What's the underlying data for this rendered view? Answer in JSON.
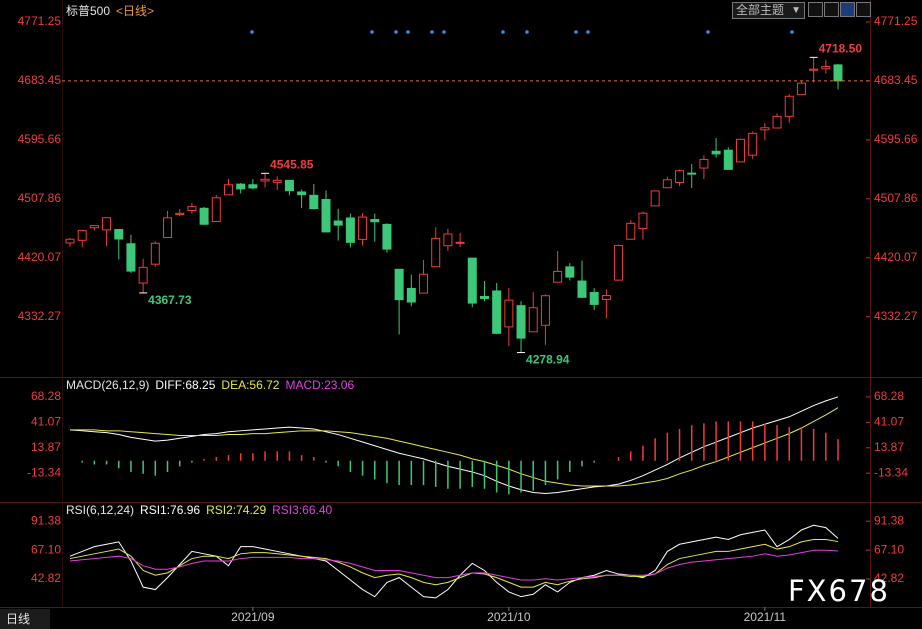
{
  "chart_data": [
    {
      "type": "candlestick",
      "title": "标普500",
      "subtitle": "<日线>",
      "categories": [
        null,
        null,
        null,
        null,
        null,
        null,
        null,
        null,
        null,
        null,
        null,
        null,
        null,
        null,
        null,
        "2021/09",
        null,
        null,
        null,
        null,
        null,
        null,
        null,
        null,
        null,
        null,
        null,
        null,
        null,
        null,
        null,
        null,
        null,
        null,
        null,
        null,
        "2021/10",
        null,
        null,
        null,
        null,
        null,
        null,
        null,
        null,
        null,
        null,
        null,
        null,
        null,
        null,
        null,
        null,
        null,
        null,
        null,
        null,
        "2021/11",
        null,
        null,
        null,
        null,
        null,
        null
      ],
      "open": [
        4442.18,
        4446.08,
        4464.84,
        4461.65,
        4462.12,
        4440.94,
        4382.44,
        4410.56,
        4450.29,
        4484.4,
        4490.45,
        4493.75,
        4474.1,
        4513.76,
        4529.75,
        4528.8,
        4534.48,
        4532.42,
        4535.38,
        4518.09,
        4513.02,
        4506.92,
        4474.81,
        4479.33,
        4447.49,
        4477.09,
        4469.74,
        4402.95,
        4374.45,
        4367.43,
        4406.75,
        4438.04,
        4442.12,
        4419.54,
        4362.41,
        4370.67,
        4317.16,
        4348.84,
        4309.87,
        4319.57,
        4383.73,
        4406.51,
        4385.44,
        4368.31,
        4358.01,
        4386.75,
        4447.69,
        4463.72,
        4497.34,
        4524.42,
        4532.24,
        4546.12,
        4553.69,
        4578.69,
        4580.22,
        4562.84,
        4572.87,
        4610.62,
        4613.34,
        4630.65,
        4662.93,
        4699.26,
        4701.48,
        4707.25
      ],
      "high": [
        4449.44,
        4461.77,
        4468.37,
        4480.26,
        4462.12,
        4454.32,
        4418.61,
        4444.35,
        4489.88,
        4492.81,
        4501.71,
        4495.9,
        4513.33,
        4537.36,
        4531.39,
        4537.11,
        4545.85,
        4541.45,
        4535.38,
        4521.79,
        4529.9,
        4520.47,
        4492.99,
        4485.68,
        4486.87,
        4485.87,
        4471.52,
        4402.95,
        4394.87,
        4416.75,
        4465.4,
        4463.12,
        4457.3,
        4419.54,
        4385.57,
        4382.55,
        4375.19,
        4355.51,
        4369.23,
        4365.57,
        4429.97,
        4412.02,
        4415.88,
        4374.89,
        4372.87,
        4439.73,
        4475.82,
        4488.75,
        4520.4,
        4540.87,
        4551.44,
        4559.67,
        4572.62,
        4598.53,
        4584.57,
        4597.55,
        4608.08,
        4620.34,
        4635.15,
        4663.46,
        4683.0,
        4718.5,
        4714.92,
        4708.53
      ],
      "low": [
        4436.42,
        4435.96,
        4460.82,
        4437.66,
        4417.83,
        4397.59,
        4367.73,
        4406.8,
        4450.29,
        4482.28,
        4485.66,
        4468.99,
        4474.1,
        4513.76,
        4515.8,
        4522.02,
        4524.66,
        4521.3,
        4513.0,
        4493.95,
        4492.07,
        4457.66,
        4445.7,
        4435.46,
        4438.37,
        4443.8,
        4427.76,
        4305.91,
        4347.96,
        4367.43,
        4406.75,
        4430.27,
        4436.19,
        4346.33,
        4355.08,
        4306.24,
        4288.52,
        4278.94,
        4309.87,
        4290.49,
        4383.73,
        4386.22,
        4360.59,
        4342.09,
        4329.92,
        4386.75,
        4447.69,
        4447.47,
        4496.41,
        4524.4,
        4526.89,
        4524.0,
        4537.36,
        4569.17,
        4551.66,
        4562.84,
        4567.59,
        4595.06,
        4613.34,
        4621.19,
        4662.59,
        4681.32,
        4694.39,
        4670.87
      ],
      "close": [
        4447.7,
        4460.83,
        4468.0,
        4479.71,
        4448.08,
        4400.27,
        4405.8,
        4441.67,
        4479.53,
        4486.23,
        4496.19,
        4470.0,
        4509.37,
        4528.79,
        4522.68,
        4524.09,
        4536.95,
        4535.43,
        4520.03,
        4514.07,
        4493.28,
        4458.58,
        4468.73,
        4443.05,
        4480.7,
        4473.75,
        4432.99,
        4357.73,
        4354.19,
        4395.64,
        4448.98,
        4455.48,
        4443.11,
        4352.63,
        4359.46,
        4307.54,
        4357.04,
        4300.46,
        4345.72,
        4363.55,
        4399.76,
        4391.34,
        4361.19,
        4350.65,
        4363.8,
        4438.26,
        4471.37,
        4486.46,
        4519.63,
        4536.19,
        4549.78,
        4544.9,
        4566.48,
        4574.79,
        4551.68,
        4596.42,
        4605.38,
        4613.67,
        4630.65,
        4660.57,
        4680.06,
        4701.0,
        4705.0,
        4683.45
      ],
      "up_color": "#f03c3c",
      "down_color": "#3cc878",
      "annotations": [
        {
          "value": 4545.85,
          "label": "4545.85"
        },
        {
          "value": 4367.73,
          "label": "4367.73"
        },
        {
          "value": 4278.94,
          "label": "4278.94"
        },
        {
          "value": 4718.5,
          "label": "4718.50"
        }
      ],
      "ylim": [
        4250,
        4792
      ],
      "yticks": [
        4771.25,
        4683.45,
        4595.66,
        4507.86,
        4420.07,
        4332.27
      ],
      "grid": false,
      "last_close_line": true
    },
    {
      "type": "macd",
      "title": "MACD(26,12,9)",
      "series": [
        {
          "name": "DIFF:68.25",
          "color": "#ffffff",
          "style": "line",
          "values": [
            33,
            32,
            31,
            30,
            28,
            25,
            23,
            21,
            22,
            24,
            26,
            28,
            29,
            31,
            32,
            33,
            34,
            35,
            36,
            35,
            34,
            31,
            28,
            24,
            20,
            16,
            12,
            8,
            5,
            2,
            -2,
            -6,
            -9,
            -12,
            -16,
            -22,
            -27,
            -31,
            -34,
            -35,
            -34,
            -32,
            -30,
            -28,
            -27,
            -25,
            -21,
            -16,
            -10,
            -4,
            3,
            9,
            15,
            20,
            25,
            30,
            35,
            39,
            43,
            47,
            53,
            59,
            64,
            68.25
          ]
        },
        {
          "name": "DEA:56.72",
          "color": "#e8e84a",
          "style": "line",
          "values": [
            33,
            33,
            33,
            32,
            32,
            31,
            30,
            29,
            28,
            27,
            27,
            27,
            27,
            28,
            28,
            29,
            29,
            30,
            31,
            32,
            32,
            32,
            31,
            30,
            28,
            26,
            24,
            21,
            18,
            15,
            12,
            9,
            6,
            2,
            -1,
            -5,
            -9,
            -14,
            -18,
            -22,
            -24,
            -26,
            -27,
            -27,
            -27,
            -27,
            -26,
            -24,
            -22,
            -19,
            -14,
            -10,
            -5,
            -1,
            4,
            9,
            14,
            19,
            24,
            29,
            35,
            42,
            49,
            56.72
          ]
        },
        {
          "name": "MACD:23.06",
          "color": "#e040e0",
          "style": "bar",
          "up_color": "#f03c3c",
          "down_color": "#3cc878",
          "values": [
            0,
            -2,
            -4,
            -4,
            -8,
            -12,
            -14,
            -16,
            -12,
            -6,
            -2,
            2,
            4,
            6,
            8,
            8,
            10,
            10,
            10,
            6,
            4,
            -2,
            -6,
            -12,
            -16,
            -20,
            -24,
            -26,
            -26,
            -26,
            -28,
            -30,
            -30,
            -28,
            -30,
            -34,
            -36,
            -34,
            -32,
            -26,
            -20,
            -12,
            -6,
            -2,
            0,
            4,
            10,
            16,
            24,
            30,
            34,
            38,
            40,
            42,
            42,
            42,
            42,
            40,
            38,
            36,
            36,
            34,
            30,
            23.06
          ]
        }
      ],
      "ylim": [
        -42,
        81
      ],
      "yticks": [
        68.28,
        41.07,
        13.87,
        -13.34
      ]
    },
    {
      "type": "line",
      "title": "RSI(6,12,24)",
      "series": [
        {
          "name": "RSI1:76.96",
          "color": "#ffffff",
          "values": [
            62,
            66,
            70,
            72,
            74,
            58,
            36,
            34,
            44,
            55,
            66,
            64,
            62,
            54,
            70,
            70,
            68,
            66,
            64,
            62,
            60,
            58,
            50,
            42,
            34,
            28,
            40,
            44,
            36,
            28,
            27,
            34,
            46,
            56,
            50,
            40,
            32,
            28,
            30,
            38,
            32,
            40,
            44,
            46,
            50,
            47,
            46,
            44,
            50,
            66,
            72,
            74,
            76,
            78,
            76,
            80,
            82,
            84,
            70,
            76,
            84,
            88,
            86,
            76.96
          ]
        },
        {
          "name": "RSI2:74.29",
          "color": "#e8e84a",
          "values": [
            60,
            62,
            64,
            66,
            68,
            62,
            50,
            46,
            48,
            54,
            60,
            62,
            62,
            60,
            64,
            65,
            65,
            64,
            63,
            62,
            61,
            60,
            57,
            53,
            48,
            44,
            46,
            47,
            44,
            40,
            38,
            40,
            44,
            48,
            47,
            44,
            40,
            36,
            36,
            40,
            38,
            41,
            43,
            44,
            46,
            46,
            45,
            45,
            47,
            55,
            60,
            62,
            64,
            66,
            66,
            68,
            70,
            72,
            68,
            70,
            74,
            76,
            76,
            74.29
          ]
        },
        {
          "name": "RSI3:66.40",
          "color": "#e040e0",
          "values": [
            58,
            59,
            60,
            61,
            62,
            60,
            54,
            51,
            51,
            53,
            56,
            58,
            58,
            58,
            60,
            61,
            61,
            61,
            61,
            60,
            60,
            59,
            58,
            56,
            53,
            50,
            50,
            50,
            48,
            46,
            44,
            44,
            46,
            48,
            48,
            46,
            44,
            42,
            42,
            43,
            42,
            43,
            44,
            45,
            46,
            46,
            46,
            46,
            47,
            52,
            55,
            57,
            58,
            59,
            60,
            61,
            62,
            64,
            62,
            63,
            65,
            67,
            67,
            66.4
          ]
        }
      ],
      "ylim": [
        21,
        105
      ],
      "yticks": [
        91.38,
        {
          "value": 67.1,
          "label": "67.10"
        },
        42.82
      ]
    }
  ],
  "ui": {
    "theme_select": "全部主题",
    "period_tab": "日线",
    "watermark": "FX678"
  }
}
